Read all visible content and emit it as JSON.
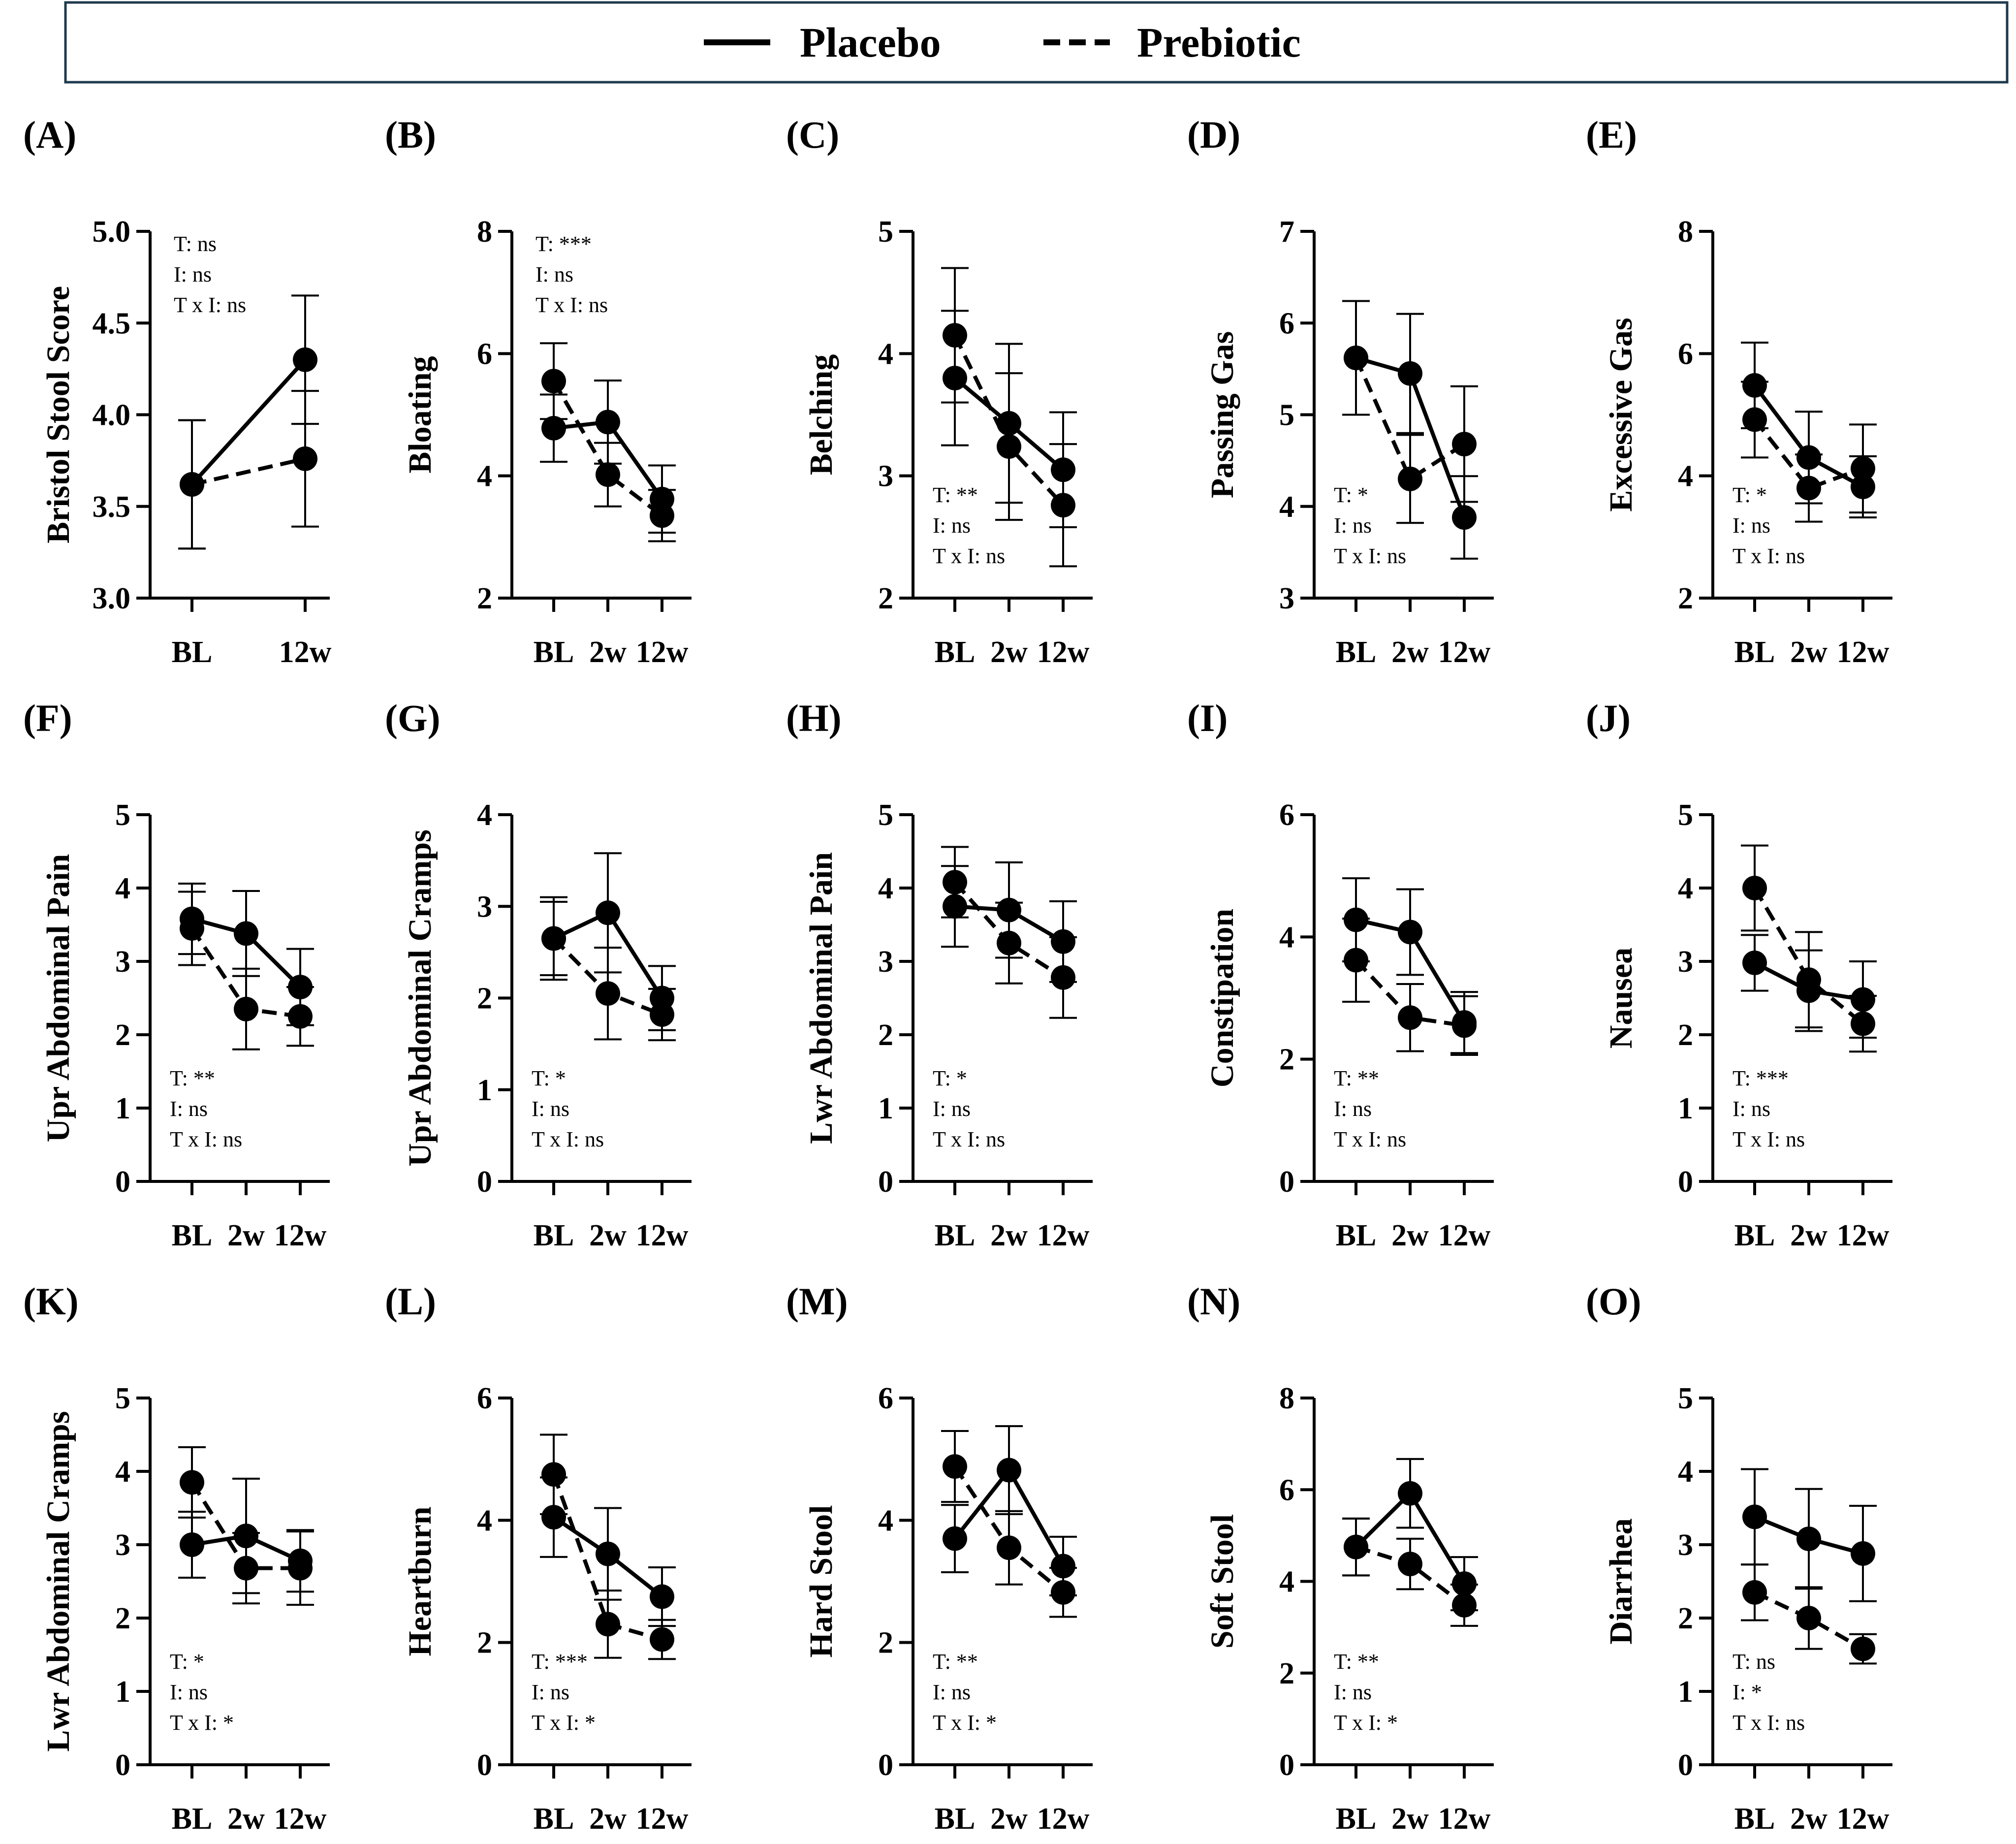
{
  "legend": {
    "entries": [
      {
        "label": "Placebo",
        "style": "solid"
      },
      {
        "label": "Prebiotic",
        "style": "dashed"
      }
    ]
  },
  "colors": {
    "line": "#000000",
    "marker": "#000000",
    "legend_border": "#1f3a4d"
  },
  "chart_data": [
    {
      "type": "line",
      "letter": "(A)",
      "ylabel": "Bristol Stool Score",
      "categories": [
        "BL",
        "12w"
      ],
      "ylim": [
        3.0,
        5.0
      ],
      "yticks": [
        "3.0",
        "3.5",
        "4.0",
        "4.5",
        "5.0"
      ],
      "series": [
        {
          "name": "Placebo",
          "values": [
            3.62,
            4.3
          ],
          "errors": [
            0.35,
            0.35
          ]
        },
        {
          "name": "Prebiotic",
          "values": [
            3.62,
            3.76
          ],
          "errors": [
            0.35,
            0.37
          ]
        }
      ],
      "stats": [
        "T: ns",
        "I: ns",
        "T x I: ns"
      ],
      "stats_position": "top-left"
    },
    {
      "type": "line",
      "letter": "(B)",
      "ylabel": "Bloating",
      "categories": [
        "BL",
        "2w",
        "12w"
      ],
      "ylim": [
        2,
        8
      ],
      "yticks": [
        "2",
        "4",
        "6",
        "8"
      ],
      "series": [
        {
          "name": "Placebo",
          "values": [
            4.78,
            4.88,
            3.62
          ],
          "errors": [
            0.55,
            0.68,
            0.55
          ]
        },
        {
          "name": "Prebiotic",
          "values": [
            5.55,
            4.02,
            3.35
          ],
          "errors": [
            0.62,
            0.52,
            0.42
          ]
        }
      ],
      "stats": [
        "T: ***",
        "I: ns",
        "T x I: ns"
      ],
      "stats_position": "top-left"
    },
    {
      "type": "line",
      "letter": "(C)",
      "ylabel": "Belching",
      "categories": [
        "BL",
        "2w",
        "12w"
      ],
      "ylim": [
        2,
        5
      ],
      "yticks": [
        "2",
        "3",
        "4",
        "5"
      ],
      "series": [
        {
          "name": "Placebo",
          "values": [
            3.8,
            3.43,
            3.05
          ],
          "errors": [
            0.55,
            0.65,
            0.47
          ]
        },
        {
          "name": "Prebiotic",
          "values": [
            4.15,
            3.24,
            2.76
          ],
          "errors": [
            0.55,
            0.6,
            0.5
          ]
        }
      ],
      "stats": [
        "T: **",
        "I: ns",
        "T x I: ns"
      ],
      "stats_position": "bottom-left"
    },
    {
      "type": "line",
      "letter": "(D)",
      "ylabel": "Passing Gas",
      "categories": [
        "BL",
        "2w",
        "12w"
      ],
      "ylim": [
        3,
        7
      ],
      "yticks": [
        "3",
        "4",
        "5",
        "6",
        "7"
      ],
      "series": [
        {
          "name": "Placebo",
          "values": [
            5.62,
            5.45,
            3.88
          ],
          "errors": [
            0.62,
            0.65,
            0.45
          ]
        },
        {
          "name": "Prebiotic",
          "values": [
            5.62,
            4.3,
            4.68
          ],
          "errors": [
            0.62,
            0.48,
            0.63
          ]
        }
      ],
      "stats": [
        "T: *",
        "I: ns",
        "T x I: ns"
      ],
      "stats_position": "bottom-left"
    },
    {
      "type": "line",
      "letter": "(E)",
      "ylabel": "Excessive Gas",
      "categories": [
        "BL",
        "2w",
        "12w"
      ],
      "ylim": [
        2,
        8
      ],
      "yticks": [
        "2",
        "4",
        "6",
        "8"
      ],
      "series": [
        {
          "name": "Placebo",
          "values": [
            5.48,
            4.3,
            3.82
          ],
          "errors": [
            0.7,
            0.75,
            0.5
          ]
        },
        {
          "name": "Prebiotic",
          "values": [
            4.92,
            3.8,
            4.12
          ],
          "errors": [
            0.62,
            0.55,
            0.72
          ]
        }
      ],
      "stats": [
        "T: *",
        "I: ns",
        "T x I: ns"
      ],
      "stats_position": "bottom-left"
    },
    {
      "type": "line",
      "letter": "(F)",
      "ylabel": "Upr Abdominal Pain",
      "categories": [
        "BL",
        "2w",
        "12w"
      ],
      "ylim": [
        0,
        5
      ],
      "yticks": [
        "0",
        "1",
        "2",
        "3",
        "4",
        "5"
      ],
      "series": [
        {
          "name": "Placebo",
          "values": [
            3.58,
            3.38,
            2.65
          ],
          "errors": [
            0.48,
            0.58,
            0.52
          ]
        },
        {
          "name": "Prebiotic",
          "values": [
            3.45,
            2.35,
            2.25
          ],
          "errors": [
            0.5,
            0.55,
            0.4
          ]
        }
      ],
      "stats": [
        "T: **",
        "I: ns",
        "T x I: ns"
      ],
      "stats_position": "bottom-left"
    },
    {
      "type": "line",
      "letter": "(G)",
      "ylabel": "Upr Abdominal Cramps",
      "categories": [
        "BL",
        "2w",
        "12w"
      ],
      "ylim": [
        0,
        4
      ],
      "yticks": [
        "0",
        "1",
        "2",
        "3",
        "4"
      ],
      "series": [
        {
          "name": "Placebo",
          "values": [
            2.65,
            2.93,
            2.0
          ],
          "errors": [
            0.45,
            0.65,
            0.35
          ]
        },
        {
          "name": "Prebiotic",
          "values": [
            2.65,
            2.05,
            1.82
          ],
          "errors": [
            0.4,
            0.5,
            0.28
          ]
        }
      ],
      "stats": [
        "T: *",
        "I: ns",
        "T x I: ns"
      ],
      "stats_position": "bottom-left"
    },
    {
      "type": "line",
      "letter": "(H)",
      "ylabel": "Lwr Abdominal Pain",
      "categories": [
        "BL",
        "2w",
        "12w"
      ],
      "ylim": [
        0,
        5
      ],
      "yticks": [
        "0",
        "1",
        "2",
        "3",
        "4",
        "5"
      ],
      "series": [
        {
          "name": "Placebo",
          "values": [
            3.75,
            3.7,
            3.27
          ],
          "errors": [
            0.55,
            0.65,
            0.55
          ]
        },
        {
          "name": "Prebiotic",
          "values": [
            4.08,
            3.25,
            2.78
          ],
          "errors": [
            0.48,
            0.55,
            0.55
          ]
        }
      ],
      "stats": [
        "T: *",
        "I: ns",
        "T x I: ns"
      ],
      "stats_position": "bottom-left"
    },
    {
      "type": "line",
      "letter": "(I)",
      "ylabel": "Constipation",
      "categories": [
        "BL",
        "2w",
        "12w"
      ],
      "ylim": [
        0,
        6
      ],
      "yticks": [
        "0",
        "2",
        "4",
        "6"
      ],
      "series": [
        {
          "name": "Placebo",
          "values": [
            4.28,
            4.08,
            2.6
          ],
          "errors": [
            0.68,
            0.7,
            0.5
          ]
        },
        {
          "name": "Prebiotic",
          "values": [
            3.62,
            2.68,
            2.55
          ],
          "errors": [
            0.68,
            0.55,
            0.48
          ]
        }
      ],
      "stats": [
        "T: **",
        "I: ns",
        "T x I: ns"
      ],
      "stats_position": "bottom-left"
    },
    {
      "type": "line",
      "letter": "(J)",
      "ylabel": "Nausea",
      "categories": [
        "BL",
        "2w",
        "12w"
      ],
      "ylim": [
        0,
        5
      ],
      "yticks": [
        "0",
        "1",
        "2",
        "3",
        "4",
        "5"
      ],
      "series": [
        {
          "name": "Placebo",
          "values": [
            2.98,
            2.6,
            2.48
          ],
          "errors": [
            0.38,
            0.55,
            0.52
          ]
        },
        {
          "name": "Prebiotic",
          "values": [
            4.0,
            2.75,
            2.15
          ],
          "errors": [
            0.58,
            0.65,
            0.38
          ]
        }
      ],
      "stats": [
        "T: ***",
        "I: ns",
        "T x I: ns"
      ],
      "stats_position": "bottom-left"
    },
    {
      "type": "line",
      "letter": "(K)",
      "ylabel": "Lwr Abdominal Cramps",
      "categories": [
        "BL",
        "2w",
        "12w"
      ],
      "ylim": [
        0,
        5
      ],
      "yticks": [
        "0",
        "1",
        "2",
        "3",
        "4",
        "5"
      ],
      "series": [
        {
          "name": "Placebo",
          "values": [
            3.0,
            3.12,
            2.78
          ],
          "errors": [
            0.45,
            0.78,
            0.42
          ]
        },
        {
          "name": "Prebiotic",
          "values": [
            3.85,
            2.68,
            2.68
          ],
          "errors": [
            0.48,
            0.48,
            0.5
          ]
        }
      ],
      "stats": [
        "T: *",
        "I: ns",
        "T x I: *"
      ],
      "stats_position": "bottom-left"
    },
    {
      "type": "line",
      "letter": "(L)",
      "ylabel": "Heartburn",
      "categories": [
        "BL",
        "2w",
        "12w"
      ],
      "ylim": [
        0,
        6
      ],
      "yticks": [
        "0",
        "2",
        "4",
        "6"
      ],
      "series": [
        {
          "name": "Placebo",
          "values": [
            4.05,
            3.45,
            2.75
          ],
          "errors": [
            0.65,
            0.75,
            0.48
          ]
        },
        {
          "name": "Prebiotic",
          "values": [
            4.75,
            2.3,
            2.05
          ],
          "errors": [
            0.65,
            0.55,
            0.32
          ]
        }
      ],
      "stats": [
        "T: ***",
        "I: ns",
        "T x I: *"
      ],
      "stats_position": "bottom-left"
    },
    {
      "type": "line",
      "letter": "(M)",
      "ylabel": "Hard Stool",
      "categories": [
        "BL",
        "2w",
        "12w"
      ],
      "ylim": [
        0,
        6
      ],
      "yticks": [
        "0",
        "2",
        "4",
        "6"
      ],
      "series": [
        {
          "name": "Placebo",
          "values": [
            3.7,
            4.82,
            3.25
          ],
          "errors": [
            0.55,
            0.72,
            0.48
          ]
        },
        {
          "name": "Prebiotic",
          "values": [
            4.88,
            3.55,
            2.82
          ],
          "errors": [
            0.58,
            0.6,
            0.4
          ]
        }
      ],
      "stats": [
        "T: **",
        "I: ns",
        "T x I: *"
      ],
      "stats_position": "bottom-left"
    },
    {
      "type": "line",
      "letter": "(N)",
      "ylabel": "Soft Stool",
      "categories": [
        "BL",
        "2w",
        "12w"
      ],
      "ylim": [
        0,
        8
      ],
      "yticks": [
        "0",
        "2",
        "4",
        "6",
        "8"
      ],
      "series": [
        {
          "name": "Placebo",
          "values": [
            4.75,
            5.92,
            3.95
          ],
          "errors": [
            0.62,
            0.75,
            0.58
          ]
        },
        {
          "name": "Prebiotic",
          "values": [
            4.75,
            4.38,
            3.48
          ],
          "errors": [
            0.62,
            0.55,
            0.45
          ]
        }
      ],
      "stats": [
        "T: **",
        "I: ns",
        "T x I: *"
      ],
      "stats_position": "bottom-left"
    },
    {
      "type": "line",
      "letter": "(O)",
      "ylabel": "Diarrhea",
      "categories": [
        "BL",
        "2w",
        "12w"
      ],
      "ylim": [
        0,
        5
      ],
      "yticks": [
        "0",
        "1",
        "2",
        "3",
        "4",
        "5"
      ],
      "series": [
        {
          "name": "Placebo",
          "values": [
            3.38,
            3.08,
            2.88
          ],
          "errors": [
            0.65,
            0.68,
            0.65
          ]
        },
        {
          "name": "Prebiotic",
          "values": [
            2.35,
            2.0,
            1.58
          ],
          "errors": [
            0.38,
            0.42,
            0.2
          ]
        }
      ],
      "stats": [
        "T: ns",
        "I: *",
        "T x I: ns"
      ],
      "stats_position": "bottom-left"
    }
  ]
}
